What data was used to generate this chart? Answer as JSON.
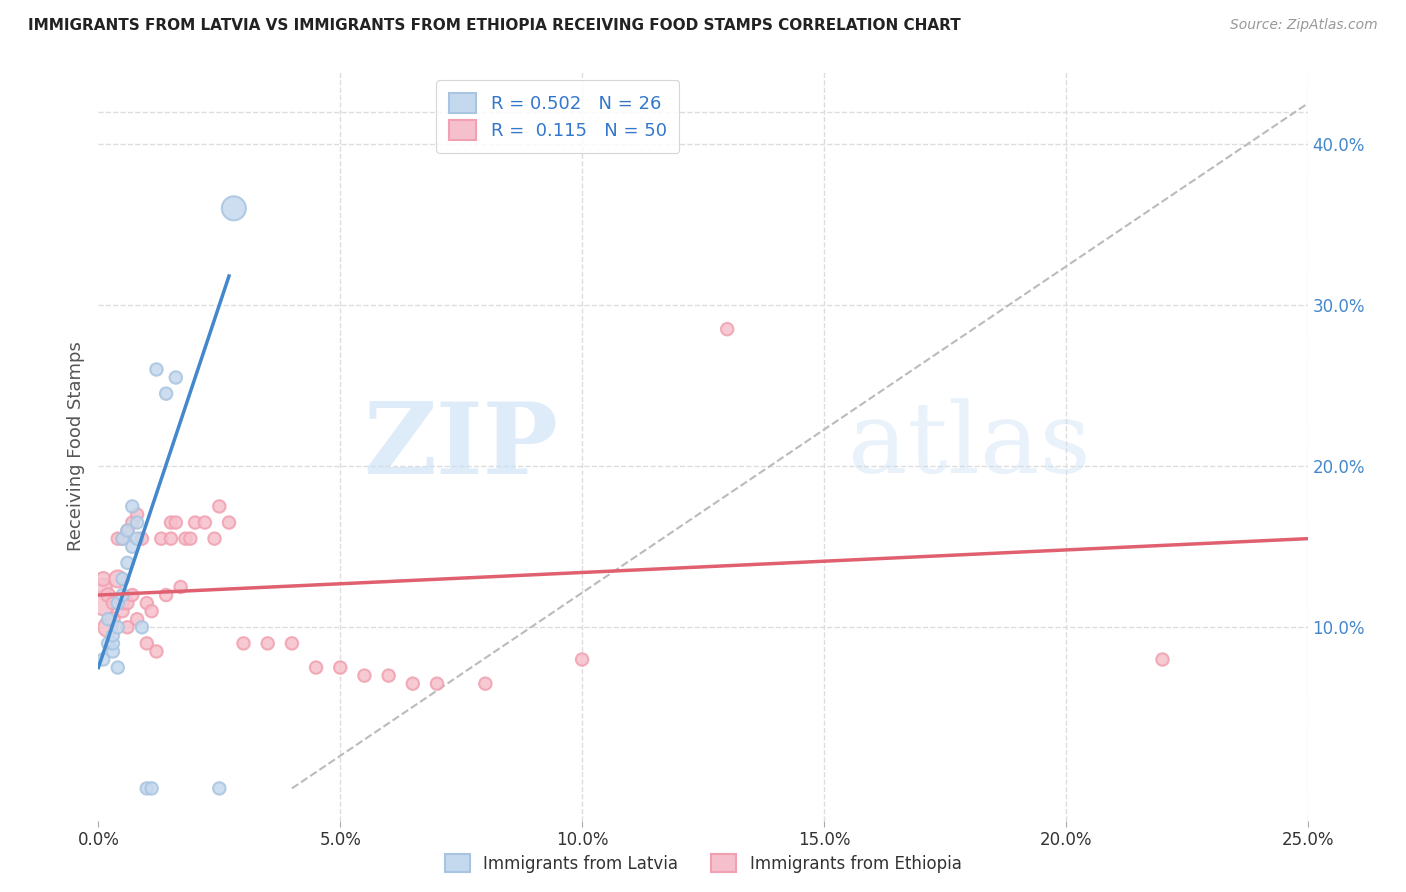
{
  "title": "IMMIGRANTS FROM LATVIA VS IMMIGRANTS FROM ETHIOPIA RECEIVING FOOD STAMPS CORRELATION CHART",
  "source": "Source: ZipAtlas.com",
  "ylabel": "Receiving Food Stamps",
  "xlim": [
    0.0,
    0.25
  ],
  "ylim": [
    -0.02,
    0.445
  ],
  "latvia_R": 0.502,
  "latvia_N": 26,
  "ethiopia_R": 0.115,
  "ethiopia_N": 50,
  "latvia_color": "#a8c4e0",
  "latvia_fill": "#c5d9ee",
  "ethiopia_color": "#f0a0b0",
  "ethiopia_fill": "#f5c0cc",
  "latvia_scatter_x": [
    0.001,
    0.002,
    0.002,
    0.003,
    0.003,
    0.003,
    0.004,
    0.004,
    0.004,
    0.005,
    0.005,
    0.005,
    0.006,
    0.006,
    0.007,
    0.007,
    0.008,
    0.008,
    0.009,
    0.01,
    0.011,
    0.012,
    0.014,
    0.016,
    0.025,
    0.028
  ],
  "latvia_scatter_y": [
    0.08,
    0.09,
    0.105,
    0.085,
    0.09,
    0.095,
    0.075,
    0.1,
    0.115,
    0.12,
    0.13,
    0.155,
    0.14,
    0.16,
    0.15,
    0.175,
    0.155,
    0.165,
    0.1,
    0.0,
    0.0,
    0.26,
    0.245,
    0.255,
    0.0,
    0.36
  ],
  "ethiopia_scatter_x": [
    0.001,
    0.001,
    0.001,
    0.002,
    0.002,
    0.003,
    0.003,
    0.004,
    0.004,
    0.005,
    0.005,
    0.005,
    0.006,
    0.006,
    0.006,
    0.007,
    0.007,
    0.008,
    0.008,
    0.009,
    0.01,
    0.01,
    0.011,
    0.012,
    0.013,
    0.014,
    0.015,
    0.015,
    0.016,
    0.017,
    0.018,
    0.019,
    0.02,
    0.022,
    0.024,
    0.025,
    0.027,
    0.03,
    0.035,
    0.04,
    0.045,
    0.05,
    0.055,
    0.06,
    0.065,
    0.07,
    0.08,
    0.1,
    0.13,
    0.22
  ],
  "ethiopia_scatter_y": [
    0.115,
    0.125,
    0.13,
    0.1,
    0.12,
    0.105,
    0.115,
    0.13,
    0.155,
    0.11,
    0.115,
    0.155,
    0.1,
    0.115,
    0.16,
    0.12,
    0.165,
    0.105,
    0.17,
    0.155,
    0.09,
    0.115,
    0.11,
    0.085,
    0.155,
    0.12,
    0.155,
    0.165,
    0.165,
    0.125,
    0.155,
    0.155,
    0.165,
    0.165,
    0.155,
    0.175,
    0.165,
    0.09,
    0.09,
    0.09,
    0.075,
    0.075,
    0.07,
    0.07,
    0.065,
    0.065,
    0.065,
    0.08,
    0.285,
    0.08
  ],
  "latvia_sizes": [
    80,
    80,
    80,
    80,
    80,
    80,
    80,
    80,
    80,
    80,
    80,
    80,
    80,
    80,
    80,
    80,
    80,
    80,
    80,
    80,
    80,
    80,
    80,
    80,
    80,
    300
  ],
  "ethiopia_sizes": [
    300,
    150,
    100,
    200,
    100,
    100,
    80,
    150,
    80,
    80,
    80,
    80,
    80,
    80,
    80,
    80,
    80,
    80,
    80,
    80,
    80,
    80,
    80,
    80,
    80,
    80,
    80,
    80,
    80,
    80,
    80,
    80,
    80,
    80,
    80,
    80,
    80,
    80,
    80,
    80,
    80,
    80,
    80,
    80,
    80,
    80,
    80,
    80,
    80,
    80
  ],
  "legend_label_latvia": "Immigrants from Latvia",
  "legend_label_ethiopia": "Immigrants from Ethiopia",
  "watermark_zip": "ZIP",
  "watermark_atlas": "atlas",
  "background_color": "#ffffff",
  "grid_color": "#dddddd",
  "y_ticks_vals": [
    0.1,
    0.2,
    0.3,
    0.4
  ],
  "x_ticks_vals": [
    0.0,
    0.05,
    0.1,
    0.15,
    0.2,
    0.25
  ]
}
